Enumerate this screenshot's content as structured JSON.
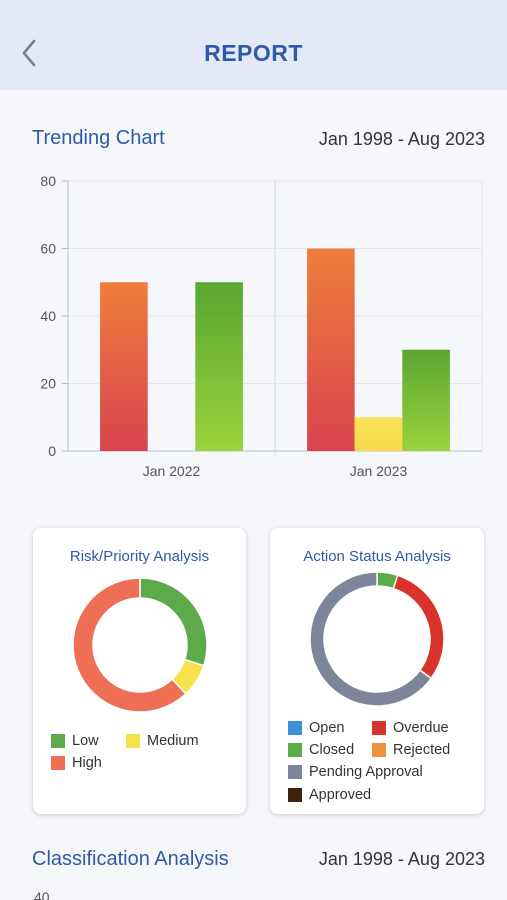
{
  "header": {
    "title": "REPORT",
    "back_icon": "chevron-left-icon"
  },
  "trending": {
    "title": "Trending Chart",
    "range": "Jan 1998 - Aug 2023"
  },
  "risk_card": {
    "title": "Risk/Priority Analysis",
    "legend": [
      {
        "label": "Low",
        "color": "#5daa4a"
      },
      {
        "label": "Medium",
        "color": "#f6e24a"
      },
      {
        "label": "High",
        "color": "#ee6e56"
      }
    ]
  },
  "action_card": {
    "title": "Action Status Analysis",
    "legend": [
      {
        "label": "Open",
        "color": "#3d8fd8"
      },
      {
        "label": "Overdue",
        "color": "#d9342b"
      },
      {
        "label": "Closed",
        "color": "#5daa4a"
      },
      {
        "label": "Rejected",
        "color": "#f0913e"
      },
      {
        "label": "Pending Approval",
        "color": "#7d8599"
      },
      {
        "label": "Approved",
        "color": "#3b2412"
      }
    ]
  },
  "classification": {
    "title": "Classification Analysis",
    "range": "Jan 1998 - Aug 2023",
    "first_tick": "40"
  },
  "chart_data": [
    {
      "type": "bar",
      "categories": [
        "Jan 2022",
        "Jan 2023"
      ],
      "series": [
        {
          "colors": [
            "#d9434f",
            "#ee7e3a"
          ],
          "values": [
            50,
            60
          ]
        },
        {
          "colors": [
            "#f7d94a",
            "#f8e45a"
          ],
          "values": [
            0,
            10
          ]
        },
        {
          "colors": [
            "#9bd23d",
            "#5aa630"
          ],
          "values": [
            50,
            30
          ]
        }
      ],
      "ylim": [
        0,
        80
      ],
      "yticks": [
        "0",
        "20",
        "40",
        "60",
        "80"
      ],
      "grid": true
    },
    {
      "type": "pie",
      "labels": [
        "Low",
        "Medium",
        "High"
      ],
      "values": [
        30,
        8,
        62
      ],
      "colors": [
        "#5daa4a",
        "#f6e24a",
        "#ee6e56"
      ]
    },
    {
      "type": "pie",
      "labels": [
        "Open",
        "Overdue",
        "Closed",
        "Rejected",
        "Pending Approval",
        "Approved"
      ],
      "values": [
        0,
        30,
        5,
        0,
        65,
        0
      ],
      "colors": [
        "#3d8fd8",
        "#d9342b",
        "#5daa4a",
        "#f0913e",
        "#7d8599",
        "#3b2412"
      ],
      "order": [
        2,
        1,
        4
      ]
    }
  ]
}
